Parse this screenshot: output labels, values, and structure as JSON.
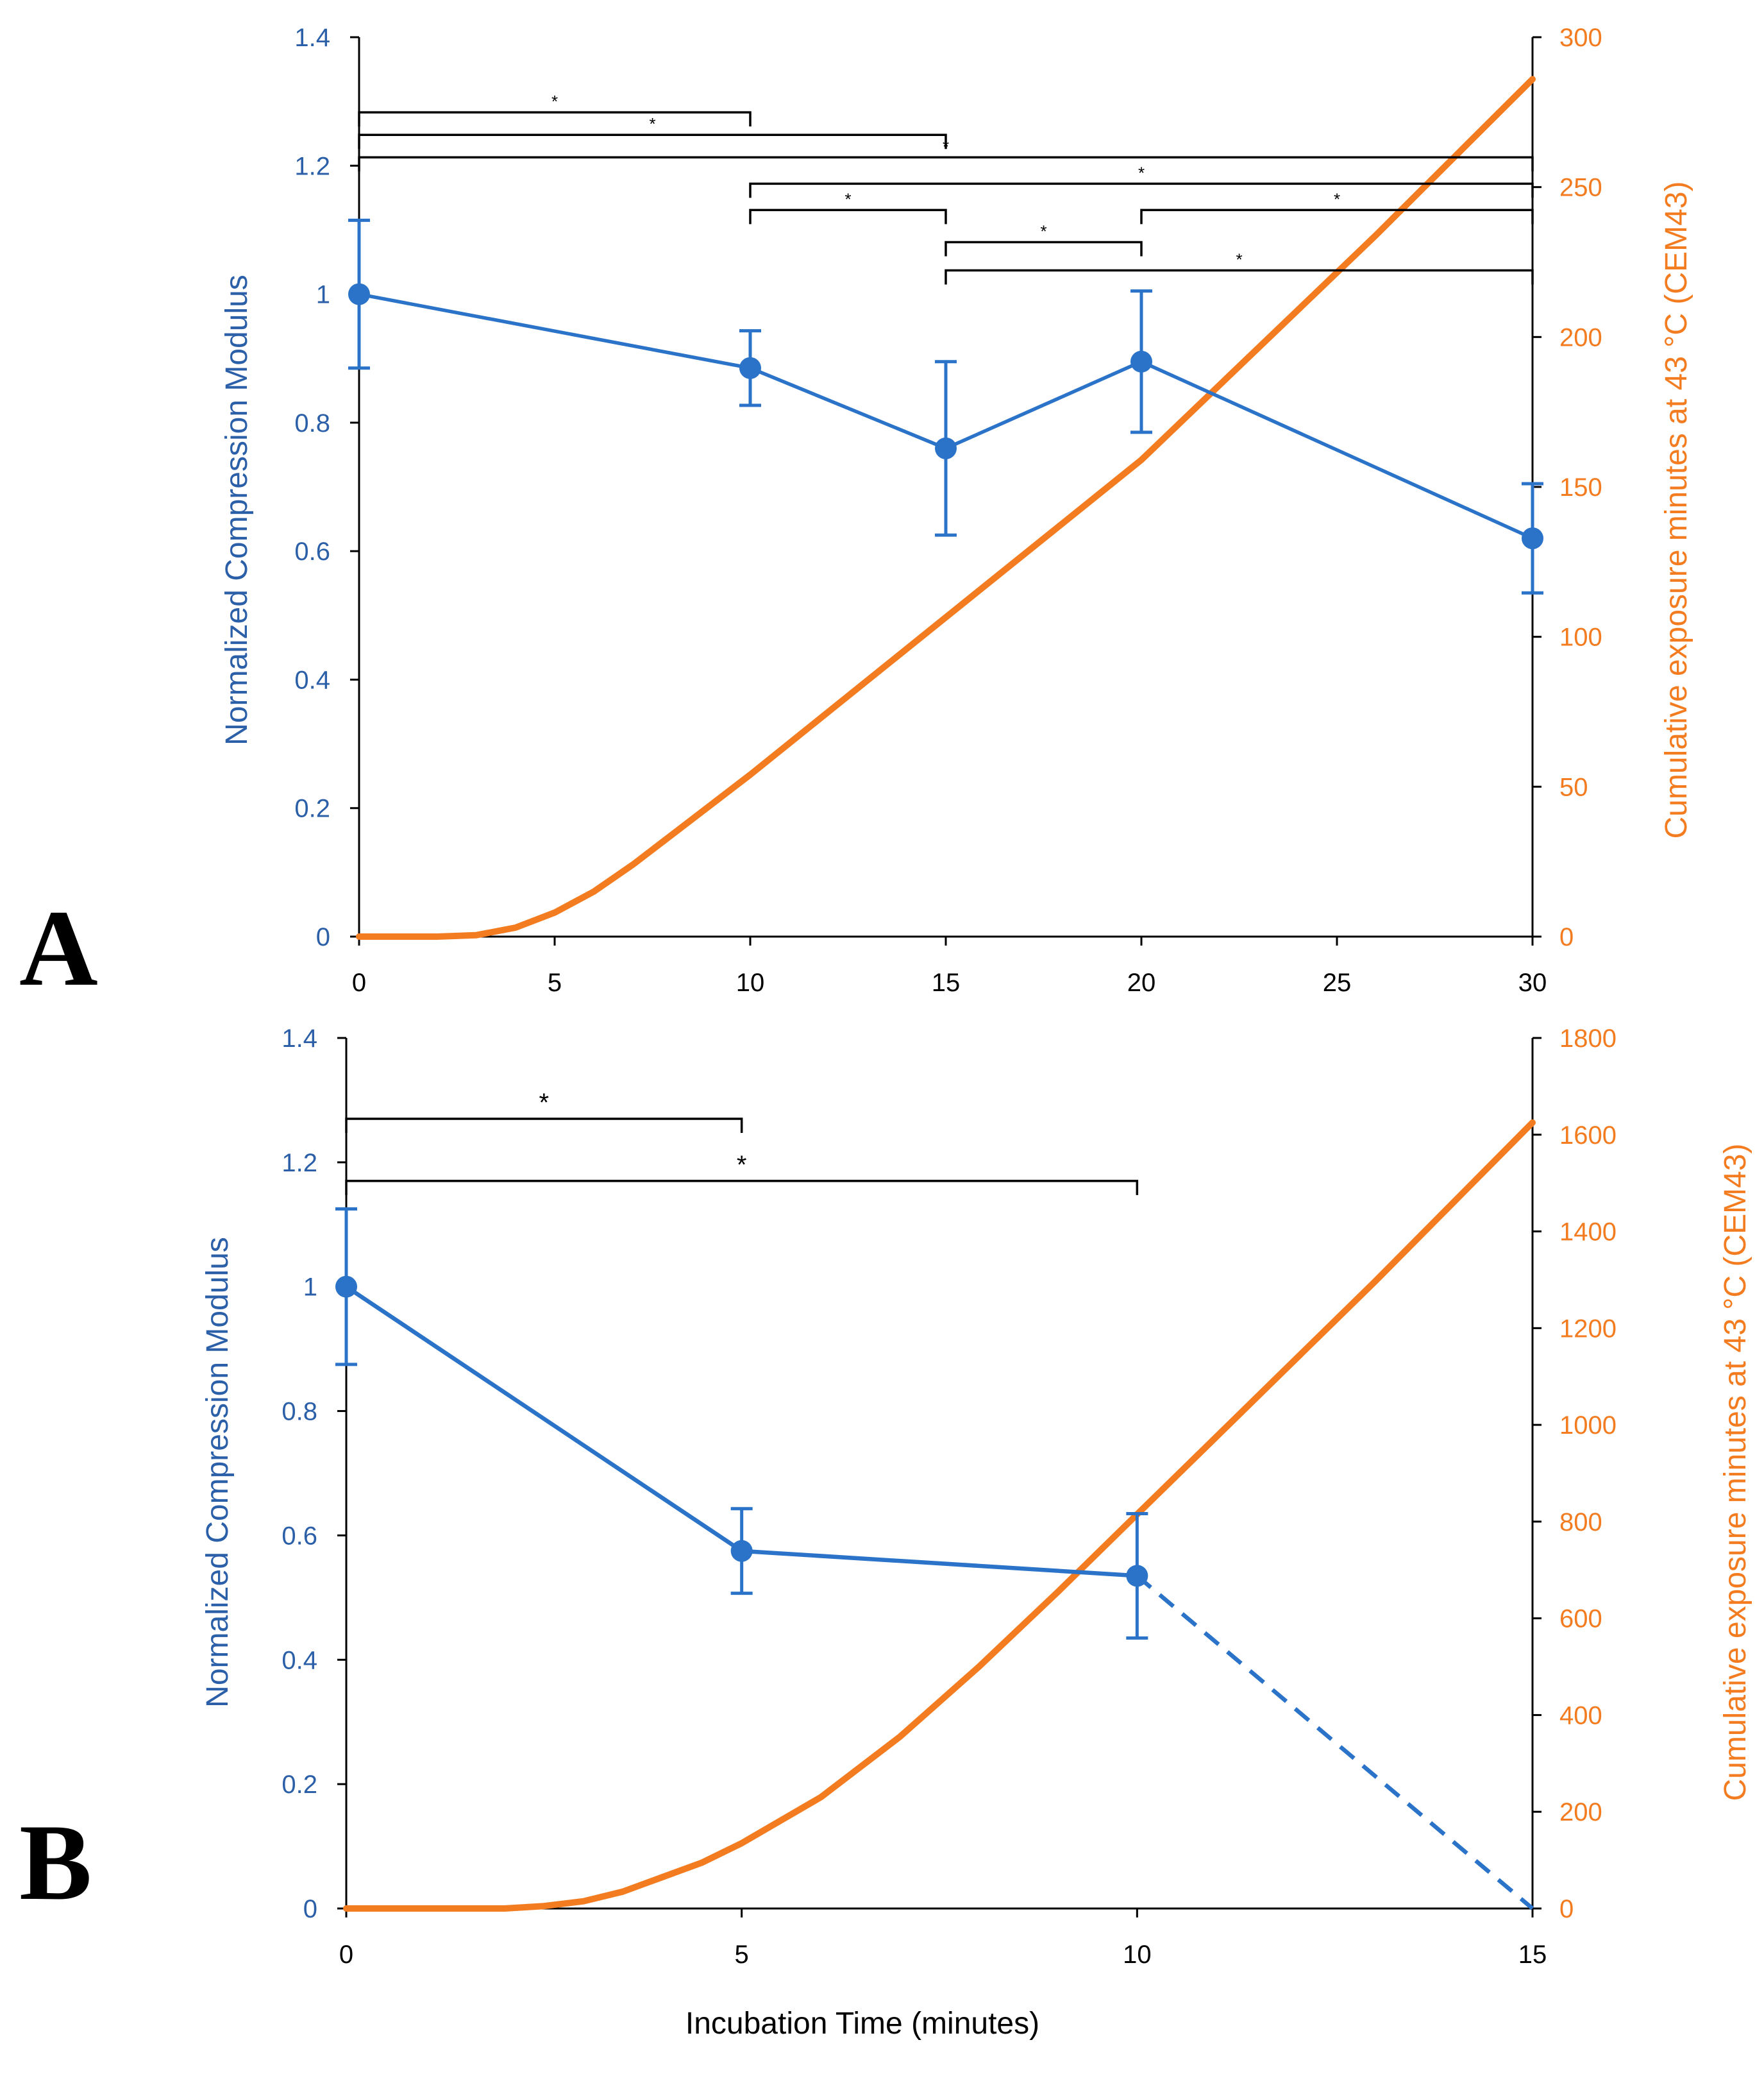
{
  "colors": {
    "left_series": "#2a73c8",
    "left_axis_text": "#2b5fa8",
    "right_series": "#f47c20",
    "axis_line": "#000000",
    "bracket": "#000000"
  },
  "x_axis_title": "Incubation Time (minutes)",
  "chart_data": [
    {
      "panel_label": "A",
      "type": "line",
      "dual_axis": true,
      "xlabel": "",
      "ylabel_left": "Normalized Compression Modulus",
      "ylabel_right": "Cumulative exposure minutes at 43 °C (CEM43)",
      "x_ticks": [
        0,
        5,
        10,
        15,
        20,
        25,
        30
      ],
      "xlim": [
        0,
        30
      ],
      "y_left_ticks": [
        "0",
        "0.2",
        "0.4",
        "0.6",
        "0.8",
        "1",
        "1.2",
        "1.4"
      ],
      "ylim_left": [
        0,
        1.4
      ],
      "y_right_ticks": [
        "0",
        "50",
        "100",
        "150",
        "200",
        "250",
        "300"
      ],
      "ylim_right": [
        0,
        300
      ],
      "series": [
        {
          "name": "Normalized Compression Modulus",
          "axis": "left",
          "x": [
            0,
            10,
            15,
            20,
            30
          ],
          "y": [
            1.0,
            0.885,
            0.76,
            0.895,
            0.62
          ],
          "err": [
            0.115,
            0.058,
            0.135,
            0.11,
            0.085
          ],
          "dashed_extension": null
        },
        {
          "name": "CEM43",
          "axis": "right",
          "x": [
            0,
            1,
            2,
            3,
            4,
            5,
            6,
            7,
            8,
            9,
            10,
            12,
            14,
            16,
            18,
            20,
            22,
            24,
            26,
            28,
            30
          ],
          "y": [
            0,
            0,
            0,
            0.5,
            3,
            8,
            15,
            24,
            34,
            44,
            54,
            75,
            96,
            117,
            138,
            159,
            184,
            209,
            234,
            260,
            286
          ]
        }
      ],
      "significance": [
        {
          "x1": 0,
          "x2": 10,
          "y": 1.283,
          "label": "*"
        },
        {
          "x1": 0,
          "x2": 15,
          "y": 1.248,
          "label": "*"
        },
        {
          "x1": 0,
          "x2": 30,
          "y": 1.213,
          "label": "*"
        },
        {
          "x1": 10,
          "x2": 30,
          "y": 1.172,
          "label": "*"
        },
        {
          "x1": 10,
          "x2": 15,
          "y": 1.131,
          "label": "*"
        },
        {
          "x1": 20,
          "x2": 30,
          "y": 1.131,
          "label": "*"
        },
        {
          "x1": 15,
          "x2": 20,
          "y": 1.081,
          "label": "*"
        },
        {
          "x1": 15,
          "x2": 30,
          "y": 1.037,
          "label": "*"
        }
      ]
    },
    {
      "panel_label": "B",
      "type": "line",
      "dual_axis": true,
      "xlabel": "Incubation Time (minutes)",
      "ylabel_left": "Normalized Compression Modulus",
      "ylabel_right": "Cumulative exposure minutes at 43 °C (CEM43)",
      "x_ticks": [
        0,
        5,
        10,
        15
      ],
      "xlim": [
        0,
        15
      ],
      "y_left_ticks": [
        "0",
        "0.2",
        "0.4",
        "0.6",
        "0.8",
        "1",
        "1.2",
        "1.4"
      ],
      "ylim_left": [
        0,
        1.4
      ],
      "y_right_ticks": [
        "0",
        "200",
        "400",
        "600",
        "800",
        "1000",
        "1200",
        "1400",
        "1600",
        "1800"
      ],
      "ylim_right": [
        0,
        1800
      ],
      "series": [
        {
          "name": "Normalized Compression Modulus",
          "axis": "left",
          "x": [
            0,
            5,
            10
          ],
          "y": [
            1.0,
            0.575,
            0.535
          ],
          "err": [
            0.125,
            0.068,
            0.1
          ],
          "dashed_extension": {
            "x": [
              10,
              15
            ],
            "y": [
              0.535,
              0.0
            ]
          }
        },
        {
          "name": "CEM43",
          "axis": "right",
          "x": [
            0,
            1,
            2,
            2.5,
            3,
            3.5,
            4,
            4.5,
            5,
            6,
            7,
            8,
            9,
            10,
            11,
            12,
            13,
            14,
            15
          ],
          "y": [
            0,
            0,
            0,
            5,
            15,
            35,
            65,
            95,
            135,
            230,
            355,
            500,
            655,
            815,
            975,
            1135,
            1295,
            1460,
            1625
          ]
        }
      ],
      "significance": [
        {
          "x1": 0,
          "x2": 5,
          "y": 1.27,
          "label": "*"
        },
        {
          "x1": 0,
          "x2": 10,
          "y": 1.17,
          "label": "*"
        }
      ]
    }
  ]
}
